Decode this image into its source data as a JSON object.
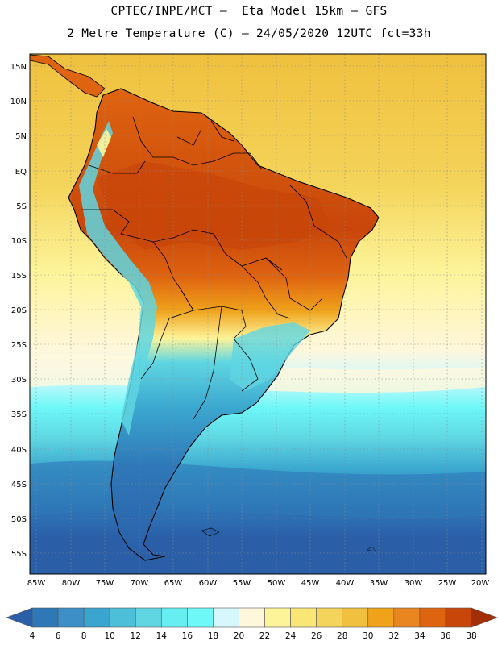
{
  "header": {
    "line1": "CPTEC/INPE/MCT –  Eta Model 15km – GFS",
    "line2": "2 Metre Temperature (C) – 24/05/2020 12UTC fct=33h"
  },
  "axes": {
    "lat_labels": [
      "15N",
      "10N",
      "5N",
      "EQ",
      "5S",
      "10S",
      "15S",
      "20S",
      "25S",
      "30S",
      "35S",
      "40S",
      "45S",
      "50S",
      "55S"
    ],
    "lon_labels": [
      "85W",
      "80W",
      "75W",
      "70W",
      "65W",
      "60W",
      "55W",
      "50W",
      "45W",
      "40W",
      "35W",
      "30W",
      "25W",
      "20W"
    ]
  },
  "colorbar": {
    "ticks": [
      "4",
      "6",
      "8",
      "10",
      "12",
      "14",
      "16",
      "18",
      "20",
      "22",
      "24",
      "26",
      "28",
      "30",
      "32",
      "34",
      "36",
      "38"
    ],
    "colors": [
      "#2a5fa8",
      "#2f78b8",
      "#3d8fc8",
      "#3aa6cf",
      "#4dbfd8",
      "#5fd6e2",
      "#66eef0",
      "#6ef8f8",
      "#d6f7fb",
      "#fff7dc",
      "#fdf49a",
      "#f9e675",
      "#f4d45a",
      "#f0c03e",
      "#efa21a",
      "#e98620",
      "#df6410",
      "#c8460a",
      "#a42e08"
    ]
  },
  "map": {
    "ocean_shades": [
      "#2a5fa8",
      "#2f78b8",
      "#3aa6cf",
      "#5fd6e2",
      "#6ef8f8",
      "#d6f7fb",
      "#fff7dc",
      "#fdf49a",
      "#f4d45a",
      "#f0c03e"
    ],
    "land_shades": [
      "#c8460a",
      "#df6410",
      "#e98620",
      "#efa21a",
      "#f4d45a",
      "#fdf49a",
      "#5fd6e2",
      "#3d8fc8",
      "#2a5fa8"
    ]
  }
}
